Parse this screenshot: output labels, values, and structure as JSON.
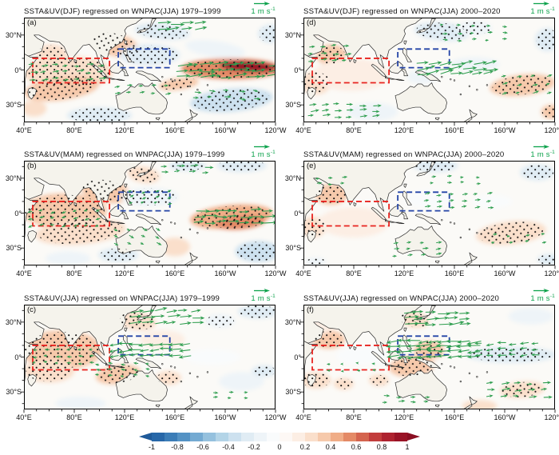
{
  "figure": {
    "ref_value": "1 m s",
    "ref_sup": "-1"
  },
  "axes": {
    "x_ticks": [
      {
        "lon": 40,
        "label": "40°E"
      },
      {
        "lon": 80,
        "label": "80°E"
      },
      {
        "lon": 120,
        "label": "120°E"
      },
      {
        "lon": 160,
        "label": "160°E"
      },
      {
        "lon": 200,
        "label": "160°W"
      },
      {
        "lon": 240,
        "label": "120°W"
      }
    ],
    "y_ticks": [
      {
        "lat": 30,
        "label": "30°N"
      },
      {
        "lat": 0,
        "label": "0°"
      },
      {
        "lat": -30,
        "label": "30°S"
      }
    ]
  },
  "colorbar": {
    "ticks": [
      "-1",
      "-0.8",
      "-0.6",
      "-0.4",
      "-0.2",
      "0",
      "0.2",
      "0.4",
      "0.6",
      "0.8",
      "1"
    ],
    "colors": [
      "#2767a8",
      "#3b7db7",
      "#5492c4",
      "#74aad2",
      "#95c1de",
      "#b3d4e7",
      "#cde1ef",
      "#e0ecf4",
      "#eef4f8",
      "#f9fbfc",
      "#fdf8f5",
      "#fceee4",
      "#fadfcb",
      "#f6c9ab",
      "#f0ad87",
      "#e48a66",
      "#d4644e",
      "#c23d3c",
      "#ae222f",
      "#991326"
    ],
    "left_arrow": "#1f5a99",
    "right_arrow": "#8a0e22"
  },
  "colors": {
    "vector": "#2f9e4f",
    "ref_label": "#0da24c",
    "red_box": "#e8231f",
    "blue_box": "#2343a6",
    "land": "#f5f3ec",
    "coast": "#2b2b2b",
    "ocean": "#fbfaf7",
    "border": "#000000"
  },
  "chart_data": {
    "type": "map-regression-panels",
    "lon_range": [
      40,
      240
    ],
    "lat_range": [
      -45,
      45
    ],
    "boxes": {
      "red": {
        "lon": [
          47,
          108
        ],
        "lat": [
          -11,
          10
        ]
      },
      "blue": {
        "lon": [
          115,
          156
        ],
        "lat": [
          2,
          18
        ]
      }
    },
    "blob_format": [
      "lon",
      "lat",
      "rx_deg",
      "ry_deg",
      "value",
      "stippled",
      "rot_deg"
    ],
    "vector_format": [
      "lon0",
      "lon1",
      "lat0",
      "lat1",
      "u_ms",
      "v_ms",
      "dlon",
      "dlat"
    ],
    "panels": [
      {
        "id": "a",
        "letter": "(a)",
        "title": "SSTA&UV(DJF) regressed on WNPAC(JJA) 1979–1999",
        "blobs": [
          [
            75,
            -2,
            36,
            14,
            0.25,
            1,
            0
          ],
          [
            70,
            -16,
            30,
            10,
            0.3,
            1,
            -8
          ],
          [
            62,
            14,
            12,
            8,
            0.25,
            1,
            0
          ],
          [
            112,
            22,
            20,
            10,
            0.3,
            1,
            15
          ],
          [
            150,
            33,
            22,
            7,
            -0.3,
            1,
            5
          ],
          [
            140,
            13,
            24,
            9,
            -0.25,
            1,
            0
          ],
          [
            205,
            1,
            40,
            9,
            0.55,
            1,
            0
          ],
          [
            218,
            3,
            22,
            4.5,
            0.95,
            1,
            3
          ],
          [
            192,
            18,
            24,
            7,
            -0.2,
            0,
            8
          ],
          [
            205,
            -26,
            33,
            10,
            -0.35,
            1,
            -5
          ],
          [
            100,
            -39,
            26,
            7,
            -0.3,
            1,
            0
          ],
          [
            163,
            -12,
            16,
            5,
            0.3,
            1,
            -8
          ],
          [
            236,
            31,
            10,
            8,
            -0.25,
            1,
            0
          ],
          [
            48,
            -33,
            10,
            7,
            0.2,
            0,
            0
          ]
        ],
        "vectors": [
          [
            162,
            238,
            -6,
            8,
            0.95,
            0.1,
            9,
            5
          ],
          [
            45,
            106,
            -8,
            6,
            0.45,
            0.05,
            9,
            6
          ],
          [
            146,
            180,
            35,
            43,
            0.8,
            0.1,
            10,
            5
          ],
          [
            112,
            152,
            -20,
            -9,
            0.35,
            0.05,
            10,
            6
          ],
          [
            175,
            230,
            -24,
            -14,
            0.4,
            -0.05,
            12,
            6
          ]
        ]
      },
      {
        "id": "d",
        "letter": "(d)",
        "title": "SSTA&UV(DJF) regressed on WNPAC(JJA) 2000–2020",
        "blobs": [
          [
            62,
            13,
            12,
            9,
            0.3,
            1,
            0
          ],
          [
            50,
            -11,
            12,
            10,
            0.25,
            1,
            0
          ],
          [
            78,
            -4,
            30,
            14,
            0.12,
            0,
            0
          ],
          [
            150,
            33,
            22,
            8,
            -0.3,
            1,
            5
          ],
          [
            176,
            36,
            14,
            6,
            -0.2,
            1,
            0
          ],
          [
            176,
            5,
            20,
            6,
            -0.15,
            0,
            0
          ],
          [
            214,
            -13,
            26,
            9,
            0.3,
            1,
            -6
          ],
          [
            234,
            26,
            10,
            10,
            -0.3,
            1,
            0
          ],
          [
            95,
            -36,
            20,
            8,
            -0.15,
            0,
            0
          ],
          [
            134,
            -6,
            12,
            6,
            -0.12,
            0,
            0
          ],
          [
            237,
            -36,
            8,
            6,
            0.3,
            1,
            0
          ],
          [
            60,
            33,
            14,
            6,
            0.15,
            0,
            0
          ]
        ],
        "vectors": [
          [
            130,
            186,
            -4,
            5,
            0.8,
            0.15,
            9,
            4.5
          ],
          [
            45,
            76,
            8,
            20,
            0.4,
            0.05,
            9,
            6
          ],
          [
            45,
            96,
            -40,
            -30,
            0.5,
            0.05,
            10,
            5
          ],
          [
            198,
            234,
            -20,
            -6,
            0.35,
            0.1,
            12,
            7
          ],
          [
            150,
            200,
            26,
            38,
            0.3,
            0,
            12,
            6
          ]
        ]
      },
      {
        "id": "b",
        "letter": "(b)",
        "title": "SSTA&UV(MAM) regressed on WNPAC(JJA) 1979–1999",
        "blobs": [
          [
            72,
            2,
            34,
            15,
            0.3,
            1,
            0
          ],
          [
            85,
            -16,
            36,
            11,
            0.25,
            1,
            -5
          ],
          [
            105,
            19,
            20,
            10,
            0.3,
            1,
            10
          ],
          [
            135,
            33,
            13,
            7,
            0.25,
            1,
            10
          ],
          [
            140,
            14,
            23,
            8,
            -0.2,
            1,
            0
          ],
          [
            205,
            -3,
            33,
            10,
            0.4,
            1,
            -5
          ],
          [
            212,
            -8,
            20,
            6,
            0.5,
            1,
            -5
          ],
          [
            213,
            41,
            20,
            6,
            -0.3,
            1,
            0
          ],
          [
            170,
            41,
            15,
            5,
            -0.25,
            1,
            0
          ],
          [
            226,
            -33,
            18,
            9,
            -0.35,
            1,
            0
          ],
          [
            115,
            -36,
            16,
            6,
            -0.25,
            1,
            0
          ],
          [
            75,
            -39,
            18,
            6,
            -0.2,
            0,
            0
          ],
          [
            160,
            -29,
            12,
            8,
            0.2,
            0,
            0
          ]
        ],
        "vectors": [
          [
            176,
            234,
            -8,
            6,
            0.8,
            0,
            9,
            5
          ],
          [
            46,
            100,
            -10,
            5,
            -0.3,
            -0.1,
            9,
            6
          ],
          [
            112,
            150,
            -26,
            -10,
            0.3,
            -0.15,
            11,
            6
          ],
          [
            150,
            186,
            35,
            43,
            0.5,
            0.05,
            11,
            5
          ],
          [
            124,
            160,
            8,
            20,
            0.25,
            0.1,
            10,
            5
          ]
        ]
      },
      {
        "id": "e",
        "letter": "(e)",
        "title": "SSTA&UV(MAM) regressed on WNPAC(JJA) 2000–2020",
        "blobs": [
          [
            62,
            16,
            13,
            9,
            0.3,
            1,
            0
          ],
          [
            48,
            -12,
            10,
            9,
            0.25,
            1,
            0
          ],
          [
            80,
            -8,
            28,
            13,
            0.1,
            0,
            0
          ],
          [
            205,
            -17,
            28,
            10,
            0.25,
            1,
            -6
          ],
          [
            226,
            35,
            14,
            7,
            -0.25,
            1,
            0
          ],
          [
            145,
            41,
            18,
            6,
            -0.25,
            1,
            0
          ],
          [
            140,
            12,
            20,
            8,
            -0.08,
            0,
            0
          ],
          [
            236,
            -40,
            10,
            5,
            -0.3,
            1,
            0
          ],
          [
            50,
            -42,
            8,
            4,
            -0.2,
            1,
            0
          ],
          [
            190,
            10,
            16,
            6,
            -0.1,
            0,
            0
          ]
        ],
        "vectors": [
          [
            136,
            186,
            5,
            18,
            0.35,
            0.05,
            10,
            5.5
          ],
          [
            50,
            72,
            25,
            33,
            0.3,
            0,
            10,
            5
          ],
          [
            112,
            152,
            -36,
            -26,
            0.35,
            0.05,
            11,
            5
          ],
          [
            190,
            230,
            -25,
            -14,
            0.25,
            0.05,
            13,
            6
          ],
          [
            142,
            186,
            26,
            34,
            0.3,
            0,
            12,
            5
          ]
        ]
      },
      {
        "id": "c",
        "letter": "(c)",
        "title": "SSTA&UV(JJA) regressed on WNPAC(JJA) 1979–1999",
        "blobs": [
          [
            70,
            6,
            32,
            17,
            0.3,
            1,
            0
          ],
          [
            60,
            -12,
            20,
            10,
            0.25,
            1,
            0
          ],
          [
            115,
            -15,
            18,
            8,
            0.3,
            1,
            -8
          ],
          [
            130,
            31,
            15,
            8,
            0.25,
            1,
            8
          ],
          [
            150,
            15,
            18,
            8,
            0.15,
            0,
            0
          ],
          [
            226,
            39,
            16,
            6,
            -0.3,
            1,
            0
          ],
          [
            196,
            31,
            12,
            6,
            -0.2,
            1,
            0
          ],
          [
            190,
            0,
            22,
            7,
            -0.1,
            0,
            0
          ],
          [
            213,
            -21,
            18,
            8,
            -0.2,
            0,
            0
          ],
          [
            231,
            -12,
            10,
            5,
            -0.25,
            1,
            0
          ],
          [
            155,
            -18,
            10,
            6,
            0.25,
            1,
            0
          ],
          [
            85,
            -40,
            20,
            6,
            -0.15,
            0,
            0
          ]
        ],
        "vectors": [
          [
            116,
            176,
            2,
            15,
            -0.8,
            -0.08,
            8,
            4.5
          ],
          [
            124,
            176,
            29,
            42,
            0.8,
            0.1,
            10,
            5
          ],
          [
            50,
            100,
            -5,
            6,
            -0.3,
            0,
            9,
            5.5
          ],
          [
            100,
            140,
            -16,
            -6,
            -0.3,
            0.05,
            10,
            5
          ],
          [
            190,
            225,
            -35,
            -28,
            0.3,
            0,
            13,
            5
          ]
        ]
      },
      {
        "id": "f",
        "letter": "(f)",
        "title": "SSTA&UV(JJA) regressed on WNPAC(JJA) 2000–2020",
        "blobs": [
          [
            60,
            15,
            13,
            8,
            0.3,
            1,
            0
          ],
          [
            50,
            -20,
            12,
            7,
            0.25,
            1,
            0
          ],
          [
            72,
            -23,
            8,
            5,
            0.25,
            1,
            0
          ],
          [
            86,
            1,
            20,
            8,
            -0.08,
            0,
            0
          ],
          [
            126,
            -8,
            18,
            9,
            0.35,
            1,
            -5
          ],
          [
            140,
            6,
            12,
            8,
            0.3,
            1,
            0
          ],
          [
            128,
            32,
            12,
            7,
            0.25,
            1,
            8
          ],
          [
            205,
            2,
            36,
            7,
            -0.3,
            1,
            0
          ],
          [
            221,
            35,
            18,
            7,
            -0.15,
            0,
            0
          ],
          [
            214,
            -28,
            18,
            7,
            0.25,
            1,
            -5
          ],
          [
            100,
            -20,
            8,
            5,
            0.25,
            1,
            0
          ],
          [
            52,
            26,
            12,
            6,
            0.15,
            0,
            0
          ],
          [
            180,
            -42,
            14,
            5,
            0.2,
            0,
            0
          ]
        ],
        "vectors": [
          [
            116,
            180,
            1,
            16,
            -0.9,
            -0.08,
            8,
            4.5
          ],
          [
            182,
            234,
            2,
            12,
            -0.55,
            -0.05,
            9,
            5
          ],
          [
            120,
            172,
            28,
            42,
            0.85,
            0.1,
            9,
            5
          ],
          [
            186,
            234,
            -34,
            -23,
            0.5,
            0.05,
            11,
            5.5
          ],
          [
            104,
            144,
            -39,
            -31,
            0.4,
            0,
            11,
            5
          ],
          [
            60,
            100,
            -12,
            -2,
            -0.2,
            0,
            12,
            6
          ]
        ]
      }
    ]
  }
}
